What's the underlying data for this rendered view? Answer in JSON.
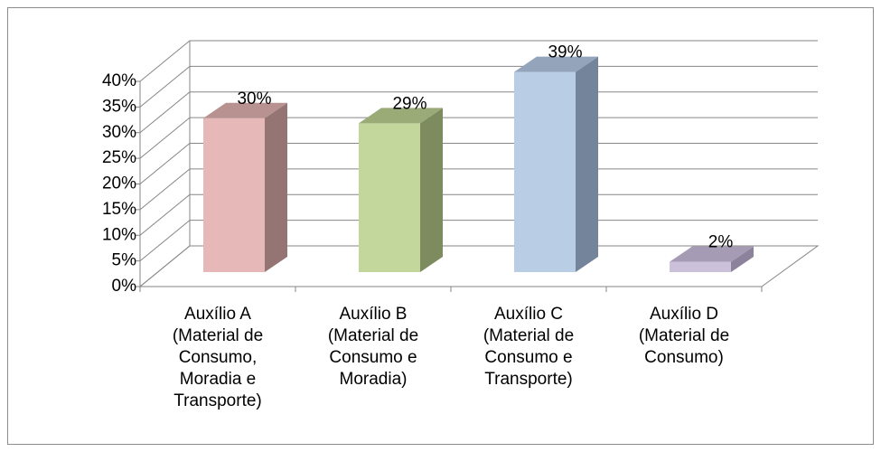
{
  "chart_data": {
    "type": "bar3d",
    "categories": [
      "Auxílio A (Material de Consumo, Moradia e Transporte)",
      "Auxílio B (Material de Consumo e Moradia)",
      "Auxílio C (Material de Consumo e Transporte)",
      "Auxílio D (Material de Consumo)"
    ],
    "values": [
      30,
      29,
      39,
      2
    ],
    "value_labels": [
      "30%",
      "29%",
      "39%",
      "2%"
    ],
    "colors": [
      "#e6b9b8",
      "#c3d69b",
      "#b9cde5",
      "#ccc1da"
    ],
    "side_colors": [
      "#957574",
      "#7e8b5f",
      "#74849a",
      "#8c829c"
    ],
    "top_colors": [
      "#b89291",
      "#9aab78",
      "#93a4bb",
      "#a69bb5"
    ],
    "ylim": [
      0,
      40
    ],
    "yticks": [
      {
        "value": 0,
        "label": "0%"
      },
      {
        "value": 5,
        "label": "5%"
      },
      {
        "value": 10,
        "label": "10%"
      },
      {
        "value": 15,
        "label": "15%"
      },
      {
        "value": 20,
        "label": "20%"
      },
      {
        "value": 25,
        "label": "25%"
      },
      {
        "value": 30,
        "label": "30%"
      },
      {
        "value": 35,
        "label": "35%"
      },
      {
        "value": 40,
        "label": "40%"
      }
    ],
    "grid": true
  }
}
